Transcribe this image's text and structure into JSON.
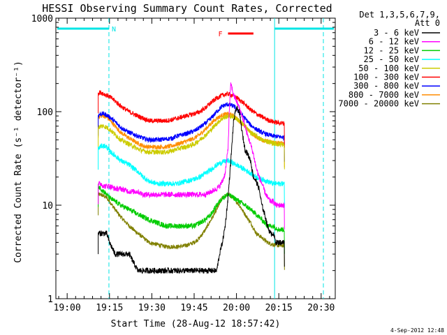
{
  "chart_data": {
    "type": "line",
    "title": "HESSI Observing Summary Count Rates, Corrected",
    "xlabel": "Start Time (28-Aug-12 18:57:42)",
    "ylabel": "Corrected Count Rate (s⁻¹ detector⁻¹)",
    "y_scale": "log",
    "ylim": [
      1,
      1000
    ],
    "xlim": [
      "18:57:42",
      "20:38:00"
    ],
    "x_ticks": [
      "19:00",
      "19:15",
      "19:30",
      "19:45",
      "20:00",
      "20:15",
      "20:30"
    ],
    "x_tick_values": [
      3,
      18,
      33,
      48,
      63,
      78,
      93
    ],
    "y_ticks": [
      "1",
      "10",
      "100",
      "1000"
    ],
    "y_tick_values": [
      1,
      10,
      100,
      1000
    ],
    "grid": false,
    "legend_position": "right-outside",
    "legend_header": [
      "Det 1,3,5,6,7,9,",
      "Att 0"
    ],
    "timestamp": "4-Sep-2012 12:48",
    "flag_labels": {
      "night": "N",
      "flare": "F"
    },
    "night_intervals": [
      [
        -1,
        17.8
      ],
      [
        76.5,
        98
      ]
    ],
    "flare_interval": [
      60,
      69
    ],
    "series": [
      {
        "name": "3 - 6 keV",
        "color": "#000000",
        "x": [
          14,
          15,
          16,
          17,
          18,
          20,
          22,
          25,
          28,
          30,
          32,
          35,
          38,
          40,
          42,
          45,
          48,
          50,
          52,
          54,
          56,
          57,
          58,
          59,
          60,
          61,
          62,
          63,
          64,
          65,
          66,
          67,
          68,
          69,
          70,
          71,
          72,
          73,
          74,
          75,
          76,
          77,
          78,
          79,
          80
        ],
        "y": [
          5,
          5,
          5,
          5,
          4,
          3,
          3,
          3,
          2,
          2,
          2,
          2,
          2,
          2,
          2,
          2,
          2,
          2,
          2,
          2,
          2,
          3,
          4,
          6,
          12,
          30,
          80,
          110,
          100,
          60,
          40,
          35,
          30,
          20,
          18,
          15,
          10,
          8,
          6,
          5,
          5,
          4,
          4,
          4,
          4
        ]
      },
      {
        "name": "6 - 12 keV",
        "color": "#ff00ff",
        "x": [
          14,
          15,
          16,
          17,
          18,
          20,
          22,
          25,
          28,
          30,
          32,
          35,
          38,
          40,
          42,
          45,
          48,
          50,
          52,
          54,
          56,
          57,
          58,
          59,
          60,
          60.5,
          61,
          62,
          63,
          64,
          65,
          66,
          67,
          68,
          69,
          70,
          71,
          72,
          73,
          74,
          75,
          76,
          77,
          78,
          79,
          80
        ],
        "y": [
          17,
          17,
          16,
          16,
          16,
          15,
          15,
          14,
          14,
          13,
          13,
          13,
          13,
          13,
          13,
          13,
          13,
          13,
          13,
          14,
          15,
          16,
          18,
          22,
          40,
          110,
          200,
          150,
          130,
          110,
          90,
          70,
          55,
          45,
          35,
          25,
          20,
          17,
          14,
          12,
          11,
          11,
          10,
          10,
          10,
          10
        ]
      },
      {
        "name": "12 - 25 keV",
        "color": "#00cc00",
        "x": [
          14,
          15,
          16,
          17,
          18,
          20,
          22,
          25,
          28,
          30,
          32,
          35,
          38,
          40,
          42,
          45,
          48,
          50,
          52,
          54,
          56,
          58,
          60,
          62,
          64,
          66,
          68,
          70,
          72,
          74,
          76,
          78,
          80
        ],
        "y": [
          16,
          15,
          14,
          13,
          12,
          11,
          10,
          9,
          8,
          7.5,
          7,
          6.5,
          6,
          6,
          6,
          6,
          6,
          6.5,
          7,
          8,
          10,
          12,
          13,
          12,
          11,
          10,
          9,
          8,
          7,
          6,
          6,
          5.5,
          5.5
        ]
      },
      {
        "name": "25 - 50 keV",
        "color": "#00ffff",
        "x": [
          14,
          15,
          16,
          17,
          18,
          20,
          22,
          25,
          28,
          30,
          32,
          35,
          38,
          40,
          42,
          45,
          48,
          50,
          52,
          54,
          56,
          58,
          60,
          62,
          64,
          66,
          68,
          70,
          72,
          74,
          76,
          78,
          80
        ],
        "y": [
          40,
          43,
          43,
          42,
          38,
          34,
          30,
          27,
          23,
          20,
          18,
          17,
          17,
          17,
          17,
          18,
          19,
          20,
          22,
          24,
          27,
          29,
          30,
          28,
          26,
          24,
          22,
          20,
          19,
          18,
          17,
          17,
          17
        ]
      },
      {
        "name": "50 - 100 keV",
        "color": "#cccc00",
        "x": [
          14,
          15,
          16,
          17,
          18,
          20,
          22,
          25,
          28,
          30,
          32,
          35,
          38,
          40,
          42,
          45,
          48,
          50,
          52,
          54,
          56,
          58,
          60,
          62,
          64,
          66,
          68,
          70,
          72,
          74,
          76,
          78,
          80
        ],
        "y": [
          68,
          70,
          70,
          68,
          65,
          57,
          50,
          45,
          40,
          38,
          37,
          37,
          37,
          38,
          40,
          42,
          45,
          50,
          56,
          64,
          75,
          85,
          90,
          88,
          80,
          70,
          60,
          55,
          50,
          48,
          46,
          45,
          44
        ]
      },
      {
        "name": "100 - 300 keV",
        "color": "#ff0000",
        "x": [
          14,
          15,
          16,
          17,
          18,
          20,
          22,
          25,
          28,
          30,
          32,
          35,
          38,
          40,
          42,
          45,
          48,
          50,
          52,
          54,
          56,
          58,
          60,
          62,
          64,
          66,
          68,
          70,
          72,
          74,
          76,
          78,
          80
        ],
        "y": [
          160,
          160,
          155,
          150,
          145,
          130,
          115,
          100,
          90,
          85,
          80,
          80,
          80,
          82,
          85,
          90,
          95,
          100,
          110,
          125,
          140,
          150,
          155,
          148,
          135,
          120,
          105,
          95,
          88,
          82,
          78,
          76,
          75
        ]
      },
      {
        "name": "300 - 800 keV",
        "color": "#0000ff",
        "x": [
          14,
          15,
          16,
          17,
          18,
          20,
          22,
          25,
          28,
          30,
          32,
          35,
          38,
          40,
          42,
          45,
          48,
          50,
          52,
          54,
          56,
          58,
          60,
          62,
          64,
          66,
          68,
          70,
          72,
          74,
          76,
          78,
          80
        ],
        "y": [
          92,
          95,
          95,
          92,
          88,
          78,
          68,
          60,
          55,
          52,
          50,
          50,
          51,
          52,
          55,
          58,
          62,
          68,
          75,
          85,
          100,
          115,
          120,
          115,
          100,
          85,
          72,
          65,
          60,
          57,
          55,
          54,
          53
        ]
      },
      {
        "name": "800 - 7000 keV",
        "color": "#ff8c00",
        "x": [
          14,
          15,
          16,
          17,
          18,
          20,
          22,
          25,
          28,
          30,
          32,
          35,
          38,
          40,
          42,
          45,
          48,
          50,
          52,
          54,
          56,
          58,
          60,
          62,
          64,
          66,
          68,
          70,
          72,
          74,
          76,
          78,
          80
        ],
        "y": [
          88,
          90,
          90,
          87,
          82,
          70,
          60,
          52,
          46,
          43,
          42,
          42,
          42,
          43,
          45,
          48,
          52,
          57,
          65,
          75,
          85,
          92,
          95,
          90,
          80,
          70,
          60,
          54,
          50,
          48,
          47,
          46,
          46
        ]
      },
      {
        "name": "7000 - 20000 keV",
        "color": "#808000",
        "x": [
          14,
          15,
          16,
          17,
          18,
          20,
          22,
          25,
          28,
          30,
          32,
          35,
          38,
          40,
          42,
          45,
          48,
          50,
          52,
          54,
          56,
          58,
          60,
          62,
          64,
          66,
          68,
          70,
          72,
          74,
          76,
          78,
          80
        ],
        "y": [
          13,
          13,
          12.5,
          12,
          11,
          9,
          7.5,
          6,
          5,
          4.5,
          4,
          3.8,
          3.6,
          3.6,
          3.6,
          3.7,
          4,
          4.5,
          5.5,
          7,
          9,
          12,
          13,
          12,
          10,
          8,
          6.5,
          5,
          4.5,
          4,
          3.8,
          3.7,
          3.7
        ]
      }
    ]
  }
}
